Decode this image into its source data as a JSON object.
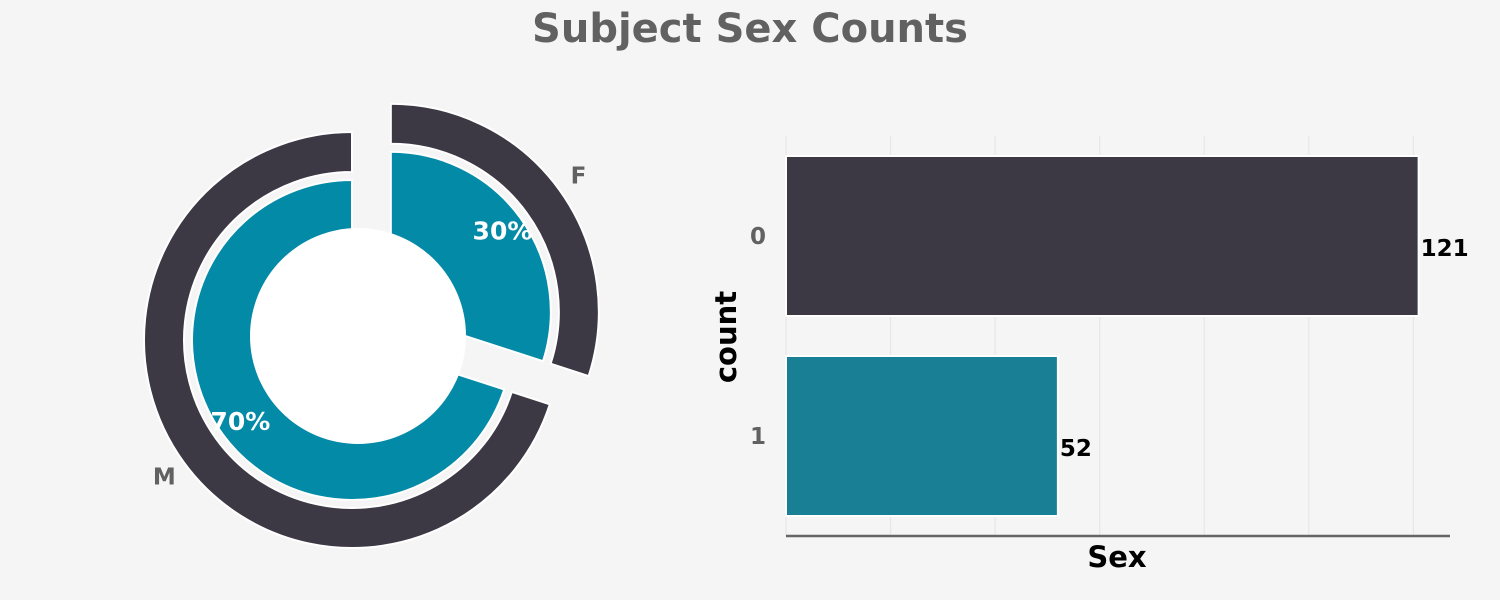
{
  "title": "Subject Sex Counts",
  "colors": {
    "dark": "#3c3945",
    "teal_pie": "#038aa7",
    "teal_bar": "#187f94",
    "background": "#f5f5f5",
    "hole": "#ffffff"
  },
  "chart_data": [
    {
      "type": "pie",
      "style": "nested-donut-exploded",
      "labels": [
        "M",
        "F"
      ],
      "values": [
        70,
        30
      ],
      "value_labels": [
        "70%",
        "30%"
      ]
    },
    {
      "type": "bar",
      "orientation": "horizontal",
      "categories": [
        "0",
        "1"
      ],
      "values": [
        121,
        52
      ],
      "value_labels": [
        "121",
        "52"
      ],
      "xlabel": "Sex",
      "ylabel": "count",
      "xlim": [
        0,
        127
      ],
      "grid": "vertical"
    }
  ]
}
